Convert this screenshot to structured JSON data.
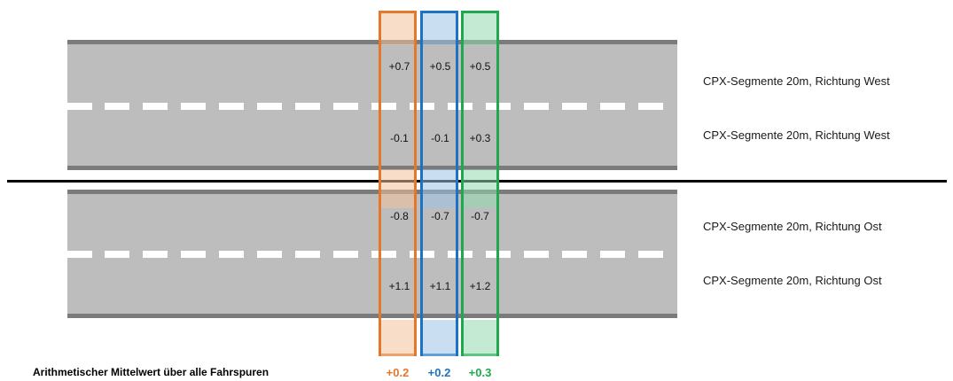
{
  "colors": {
    "segment_1": "#e3782a",
    "segment_2": "#1f72bf",
    "segment_3": "#20a84e",
    "segment_1_fill": "#f3c39b",
    "segment_2_fill": "#9cc3e6",
    "segment_3_fill": "#93d9b0"
  },
  "lanes": [
    {
      "label": "CPX-Segmente 20m, Richtung West",
      "values": [
        "+0.7",
        "+0.5",
        "+0.5"
      ]
    },
    {
      "label": "CPX-Segmente 20m, Richtung West",
      "values": [
        "-0.1",
        "-0.1",
        "+0.3"
      ]
    },
    {
      "label": "CPX-Segmente 20m, Richtung Ost",
      "values": [
        "-0.8",
        "-0.7",
        "-0.7"
      ]
    },
    {
      "label": "CPX-Segmente 20m, Richtung Ost",
      "values": [
        "+1.1",
        "+1.1",
        "+1.2"
      ]
    }
  ],
  "footer": {
    "label": "Arithmetischer  Mittelwert über alle  Fahrspuren",
    "averages": [
      "+0.2",
      "+0.2",
      "+0.3"
    ]
  }
}
